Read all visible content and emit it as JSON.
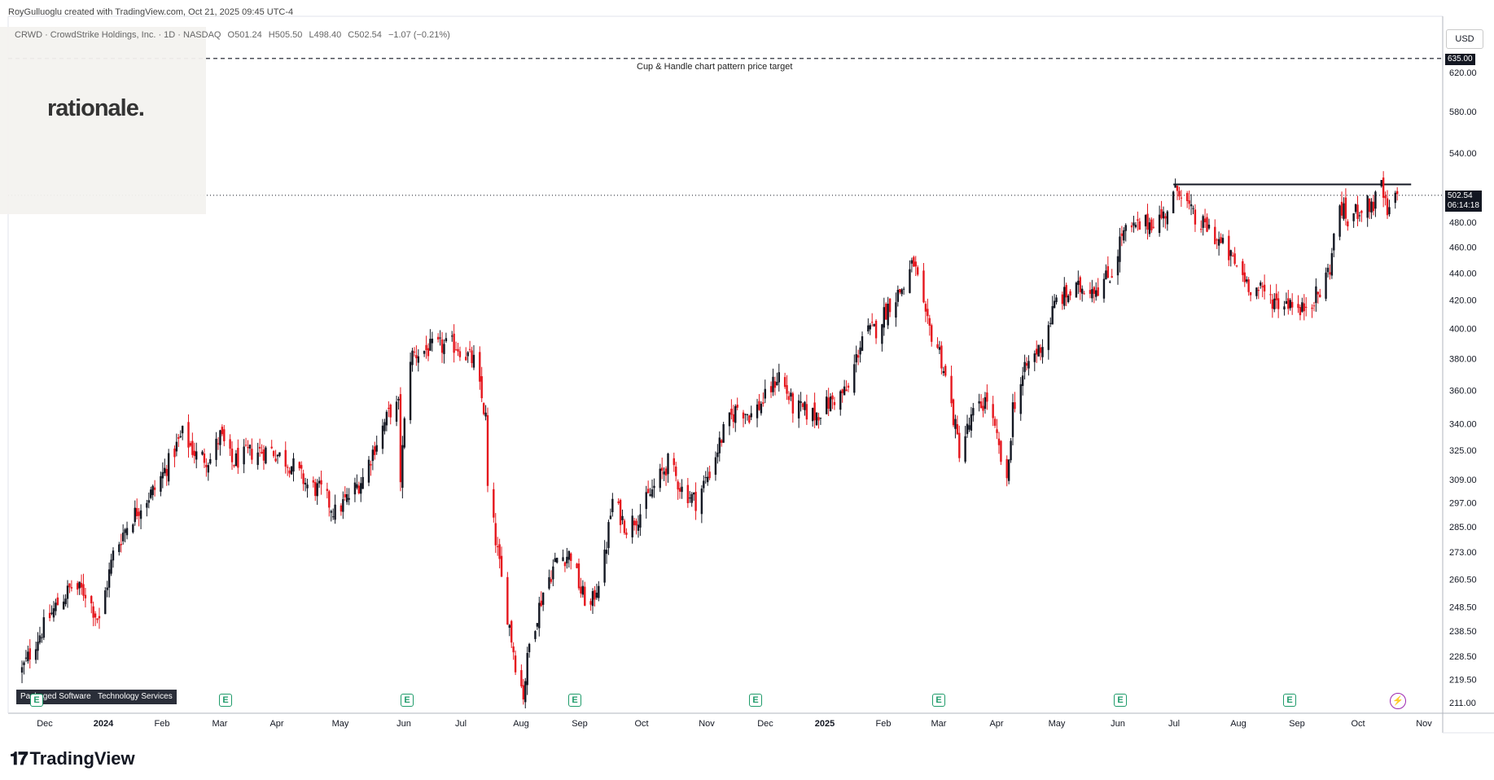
{
  "header": {
    "attribution": "RoyGulluoglu created with TradingView.com, Oct 21, 2025 09:45 UTC-4",
    "symbol_line": "CRWD · CrowdStrike Holdings, Inc. · 1D · NASDAQ",
    "open": "O501.24",
    "high": "H505.50",
    "low": "L498.40",
    "close": "C502.54",
    "change": "−1.07 (−0.21%)"
  },
  "overlay": {
    "logo_text": "rationale."
  },
  "annotation": {
    "target_label": "Cup & Handle chart pattern price target"
  },
  "currency": "USD",
  "price_tags": {
    "target": "635.00",
    "last": "502.54",
    "countdown": "06:14:18"
  },
  "badges": {
    "sector": [
      "Packaged Software",
      "Technology Services"
    ],
    "earnings_label": "E",
    "dividend_icon": "lightning-icon"
  },
  "footer": {
    "brand": "TradingView"
  },
  "colors": {
    "up": "#131722",
    "down": "#e5161d",
    "target_line": "#131722",
    "resistance": "#131722"
  },
  "chart_data": {
    "type": "candlestick",
    "symbol": "CRWD",
    "price_scale": "log",
    "ylim": [
      205,
      680
    ],
    "y_ticks": [
      211.0,
      219.5,
      228.5,
      238.5,
      248.5,
      260.5,
      273.0,
      285.0,
      297.0,
      309.0,
      325.0,
      340.0,
      360.0,
      380.0,
      400.0,
      420.0,
      440.0,
      460.0,
      480.0,
      540.0,
      580.0,
      620.0
    ],
    "x_labels": [
      "Dec",
      "2024",
      "Feb",
      "Mar",
      "Apr",
      "May",
      "Jun",
      "Jul",
      "Aug",
      "Sep",
      "Oct",
      "Nov",
      "Dec",
      "2025",
      "Feb",
      "Mar",
      "Apr",
      "May",
      "Jun",
      "Jul",
      "Aug",
      "Sep",
      "Oct",
      "Nov"
    ],
    "price_path": [
      {
        "date": "2023-11-27",
        "close": 223
      },
      {
        "date": "2023-12-05",
        "close": 236
      },
      {
        "date": "2023-12-15",
        "close": 250
      },
      {
        "date": "2023-12-22",
        "close": 257
      },
      {
        "date": "2023-12-29",
        "close": 255
      },
      {
        "date": "2024-01-05",
        "close": 242
      },
      {
        "date": "2024-01-12",
        "close": 272
      },
      {
        "date": "2024-01-19",
        "close": 286
      },
      {
        "date": "2024-01-26",
        "close": 296
      },
      {
        "date": "2024-02-02",
        "close": 304
      },
      {
        "date": "2024-02-09",
        "close": 318
      },
      {
        "date": "2024-02-16",
        "close": 334
      },
      {
        "date": "2024-02-23",
        "close": 322
      },
      {
        "date": "2024-03-01",
        "close": 320
      },
      {
        "date": "2024-03-06",
        "close": 333
      },
      {
        "date": "2024-03-12",
        "close": 318
      },
      {
        "date": "2024-03-22",
        "close": 324
      },
      {
        "date": "2024-04-01",
        "close": 325
      },
      {
        "date": "2024-04-12",
        "close": 316
      },
      {
        "date": "2024-04-19",
        "close": 306
      },
      {
        "date": "2024-04-26",
        "close": 303
      },
      {
        "date": "2024-05-03",
        "close": 292
      },
      {
        "date": "2024-05-10",
        "close": 300
      },
      {
        "date": "2024-05-17",
        "close": 310
      },
      {
        "date": "2024-05-24",
        "close": 330
      },
      {
        "date": "2024-05-31",
        "close": 348
      },
      {
        "date": "2024-06-04",
        "close": 350
      },
      {
        "date": "2024-06-05",
        "close": 310
      },
      {
        "date": "2024-06-07",
        "close": 340
      },
      {
        "date": "2024-06-10",
        "close": 382
      },
      {
        "date": "2024-06-21",
        "close": 387
      },
      {
        "date": "2024-07-03",
        "close": 389
      },
      {
        "date": "2024-07-12",
        "close": 378
      },
      {
        "date": "2024-07-18",
        "close": 343
      },
      {
        "date": "2024-07-19",
        "close": 304
      },
      {
        "date": "2024-07-26",
        "close": 260
      },
      {
        "date": "2024-08-02",
        "close": 226
      },
      {
        "date": "2024-08-06",
        "close": 214
      },
      {
        "date": "2024-08-09",
        "close": 233
      },
      {
        "date": "2024-08-16",
        "close": 255
      },
      {
        "date": "2024-08-23",
        "close": 270
      },
      {
        "date": "2024-08-30",
        "close": 272
      },
      {
        "date": "2024-09-04",
        "close": 255
      },
      {
        "date": "2024-09-09",
        "close": 248
      },
      {
        "date": "2024-09-16",
        "close": 270
      },
      {
        "date": "2024-09-20",
        "close": 298
      },
      {
        "date": "2024-09-27",
        "close": 285
      },
      {
        "date": "2024-10-04",
        "close": 292
      },
      {
        "date": "2024-10-11",
        "close": 305
      },
      {
        "date": "2024-10-18",
        "close": 318
      },
      {
        "date": "2024-10-25",
        "close": 304
      },
      {
        "date": "2024-11-01",
        "close": 298
      },
      {
        "date": "2024-11-08",
        "close": 313
      },
      {
        "date": "2024-11-15",
        "close": 335
      },
      {
        "date": "2024-11-22",
        "close": 350
      },
      {
        "date": "2024-11-29",
        "close": 345
      },
      {
        "date": "2024-12-06",
        "close": 355
      },
      {
        "date": "2024-12-13",
        "close": 370
      },
      {
        "date": "2024-12-20",
        "close": 350
      },
      {
        "date": "2024-12-31",
        "close": 345
      },
      {
        "date": "2025-01-10",
        "close": 355
      },
      {
        "date": "2025-01-17",
        "close": 360
      },
      {
        "date": "2025-01-24",
        "close": 395
      },
      {
        "date": "2025-01-31",
        "close": 400
      },
      {
        "date": "2025-02-07",
        "close": 418
      },
      {
        "date": "2025-02-14",
        "close": 430
      },
      {
        "date": "2025-02-19",
        "close": 448
      },
      {
        "date": "2025-02-25",
        "close": 405
      },
      {
        "date": "2025-03-04",
        "close": 385
      },
      {
        "date": "2025-03-10",
        "close": 350
      },
      {
        "date": "2025-03-14",
        "close": 325
      },
      {
        "date": "2025-03-21",
        "close": 345
      },
      {
        "date": "2025-03-28",
        "close": 355
      },
      {
        "date": "2025-04-04",
        "close": 320
      },
      {
        "date": "2025-04-07",
        "close": 305
      },
      {
        "date": "2025-04-10",
        "close": 350
      },
      {
        "date": "2025-04-17",
        "close": 375
      },
      {
        "date": "2025-04-25",
        "close": 390
      },
      {
        "date": "2025-05-02",
        "close": 420
      },
      {
        "date": "2025-05-09",
        "close": 425
      },
      {
        "date": "2025-05-16",
        "close": 430
      },
      {
        "date": "2025-05-23",
        "close": 430
      },
      {
        "date": "2025-05-30",
        "close": 440
      },
      {
        "date": "2025-06-04",
        "close": 470
      },
      {
        "date": "2025-06-11",
        "close": 475
      },
      {
        "date": "2025-06-18",
        "close": 480
      },
      {
        "date": "2025-06-25",
        "close": 485
      },
      {
        "date": "2025-07-01",
        "close": 505
      },
      {
        "date": "2025-07-03",
        "close": 510
      },
      {
        "date": "2025-07-11",
        "close": 480
      },
      {
        "date": "2025-07-18",
        "close": 475
      },
      {
        "date": "2025-07-25",
        "close": 460
      },
      {
        "date": "2025-08-01",
        "close": 445
      },
      {
        "date": "2025-08-08",
        "close": 430
      },
      {
        "date": "2025-08-15",
        "close": 425
      },
      {
        "date": "2025-08-22",
        "close": 418
      },
      {
        "date": "2025-08-29",
        "close": 420
      },
      {
        "date": "2025-09-02",
        "close": 410
      },
      {
        "date": "2025-09-05",
        "close": 418
      },
      {
        "date": "2025-09-12",
        "close": 425
      },
      {
        "date": "2025-09-17",
        "close": 445
      },
      {
        "date": "2025-09-22",
        "close": 495
      },
      {
        "date": "2025-09-26",
        "close": 480
      },
      {
        "date": "2025-10-02",
        "close": 492
      },
      {
        "date": "2025-10-09",
        "close": 495
      },
      {
        "date": "2025-10-13",
        "close": 510
      },
      {
        "date": "2025-10-16",
        "close": 485
      },
      {
        "date": "2025-10-21",
        "close": 502.54
      }
    ],
    "levels": [
      {
        "name": "Cup & Handle chart pattern price target",
        "price": 635.0,
        "style": "dashed"
      },
      {
        "name": "resistance",
        "price": 512,
        "style": "solid",
        "from": "2025-06-30",
        "to": "2025-10-28"
      },
      {
        "name": "last",
        "price": 502.54,
        "style": "dotted"
      }
    ]
  }
}
